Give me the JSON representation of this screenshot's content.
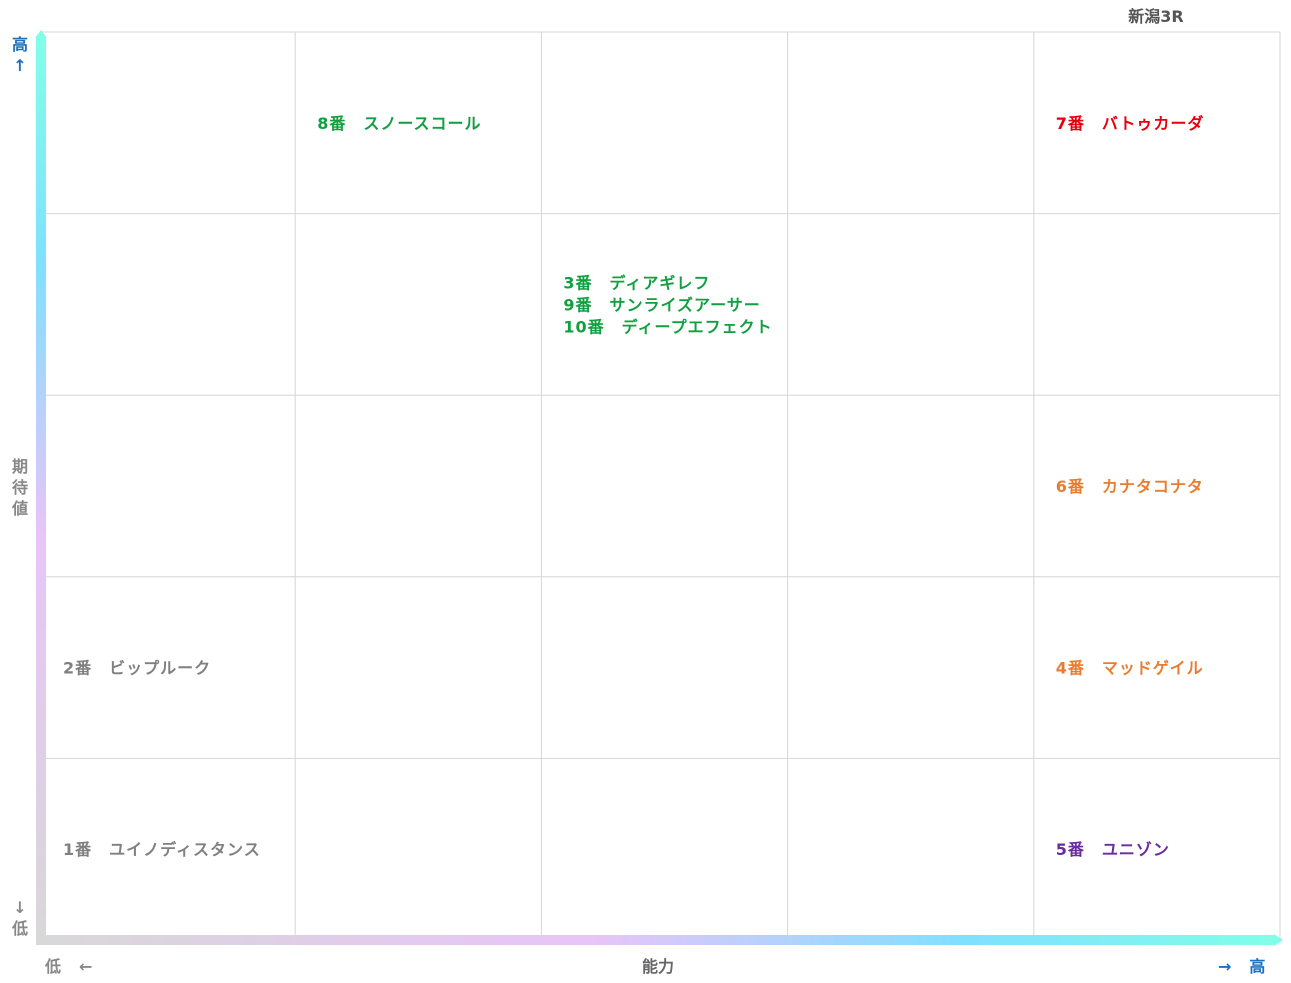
{
  "title": "新潟3R",
  "y_axis": {
    "label": "期待値",
    "high": "高",
    "low": "低",
    "arrow_up": "↑",
    "arrow_down": "↓"
  },
  "x_axis": {
    "label": "能力",
    "high": "高",
    "low": "低",
    "arrow_left": "←",
    "arrow_right": "→"
  },
  "colors": {
    "green": "#10a040",
    "red": "#e6000a",
    "orange": "#e87c30",
    "gray": "#808080",
    "purple": "#6a2aa0",
    "axis_blue": "#1f6fbf"
  },
  "chart_data": {
    "type": "scatter",
    "x_levels": 5,
    "y_levels": 5,
    "grid": true,
    "xlabel": "能力",
    "ylabel": "期待値",
    "points": [
      {
        "label": "8番　スノースコール",
        "x": 2,
        "y": 5,
        "color": "#10a040"
      },
      {
        "label": "7番　バトゥカーダ",
        "x": 5,
        "y": 5,
        "color": "#e6000a"
      },
      {
        "label": "3番　ディアギレフ",
        "x": 3,
        "y": 4,
        "color": "#10a040"
      },
      {
        "label": "9番　サンライズアーサー",
        "x": 3,
        "y": 4,
        "color": "#10a040"
      },
      {
        "label": "10番　ディープエフェクト",
        "x": 3,
        "y": 4,
        "color": "#10a040"
      },
      {
        "label": "6番　カナタコナタ",
        "x": 5,
        "y": 3,
        "color": "#e87c30"
      },
      {
        "label": "2番　ビップルーク",
        "x": 1,
        "y": 2,
        "color": "#808080"
      },
      {
        "label": "4番　マッドゲイル",
        "x": 5,
        "y": 2,
        "color": "#e87c30"
      },
      {
        "label": "1番　ユイノディスタンス",
        "x": 1,
        "y": 1,
        "color": "#808080"
      },
      {
        "label": "5番　ユニゾン",
        "x": 5,
        "y": 1,
        "color": "#6a2aa0"
      }
    ]
  }
}
